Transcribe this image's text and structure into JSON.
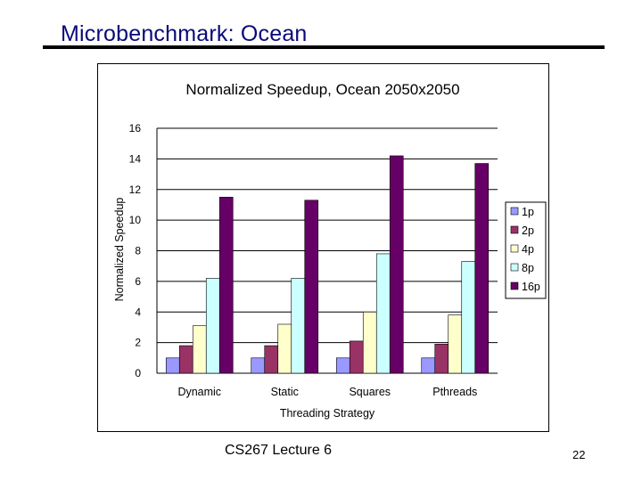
{
  "slide": {
    "title": "Microbenchmark: Ocean",
    "footer": "CS267 Lecture 6",
    "page_number": "22"
  },
  "colors": {
    "title": "#0a0a7a",
    "series": [
      "#9999ff",
      "#993366",
      "#ffffcc",
      "#ccffff",
      "#660066"
    ]
  },
  "chart_data": {
    "type": "bar",
    "title": "Normalized Speedup, Ocean 2050x2050",
    "xlabel": "Threading Strategy",
    "ylabel": "Normalized Speedup",
    "ylim": [
      0,
      16
    ],
    "yticks": [
      "0",
      "2",
      "4",
      "6",
      "8",
      "10",
      "12",
      "14",
      "16"
    ],
    "grid": true,
    "legend_position": "right",
    "categories": [
      "Dynamic",
      "Static",
      "Squares",
      "Pthreads"
    ],
    "series": [
      {
        "name": "1p",
        "values": [
          1.0,
          1.0,
          1.0,
          1.0
        ]
      },
      {
        "name": "2p",
        "values": [
          1.8,
          1.8,
          2.1,
          1.9
        ]
      },
      {
        "name": "4p",
        "values": [
          3.1,
          3.2,
          4.0,
          3.8
        ]
      },
      {
        "name": "8p",
        "values": [
          6.2,
          6.2,
          7.8,
          7.3
        ]
      },
      {
        "name": "16p",
        "values": [
          11.5,
          11.3,
          14.2,
          13.7
        ]
      }
    ]
  }
}
